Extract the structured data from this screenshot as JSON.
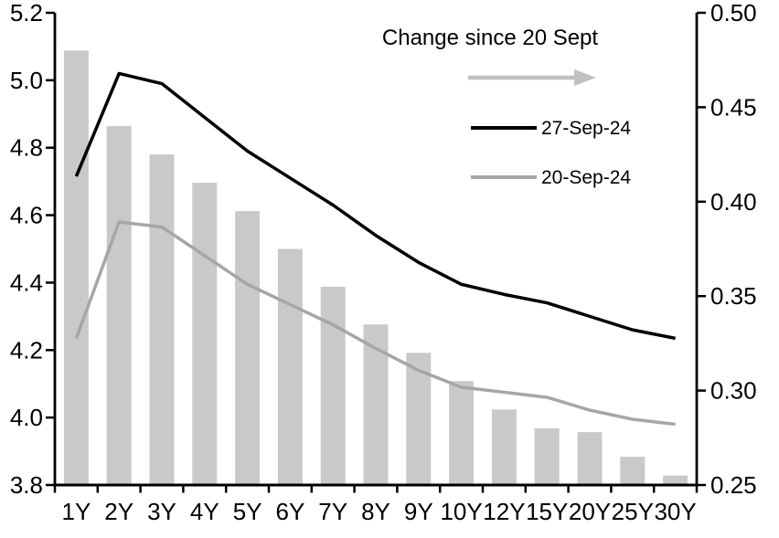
{
  "chart_data": {
    "type": "combo",
    "title": "",
    "categories": [
      "1Y",
      "2Y",
      "3Y",
      "4Y",
      "5Y",
      "6Y",
      "7Y",
      "8Y",
      "9Y",
      "10Y",
      "12Y",
      "15Y",
      "20Y",
      "25Y",
      "30Y"
    ],
    "series": [
      {
        "name": "Change since 20 Sept",
        "type": "bar",
        "axis": "right",
        "color": "#c9c9c9",
        "values": [
          0.48,
          0.44,
          0.425,
          0.41,
          0.395,
          0.375,
          0.355,
          0.335,
          0.32,
          0.305,
          0.29,
          0.28,
          0.278,
          0.265,
          0.255
        ]
      },
      {
        "name": "27-Sep-24",
        "type": "line",
        "axis": "left",
        "color": "#000000",
        "values": [
          4.715,
          5.02,
          4.99,
          4.89,
          4.79,
          4.71,
          4.63,
          4.54,
          4.46,
          4.395,
          4.365,
          4.34,
          4.3,
          4.26,
          4.235
        ]
      },
      {
        "name": "20-Sep-24",
        "type": "line",
        "axis": "left",
        "color": "#a6a6a6",
        "values": [
          4.235,
          4.58,
          4.565,
          4.48,
          4.395,
          4.335,
          4.275,
          4.205,
          4.14,
          4.09,
          4.075,
          4.06,
          4.022,
          3.995,
          3.98
        ]
      }
    ],
    "left_axis": {
      "min": 3.8,
      "max": 5.2,
      "step": 0.2,
      "ticks": [
        "5.2",
        "5.0",
        "4.8",
        "4.6",
        "4.4",
        "4.2",
        "4.0",
        "3.8"
      ]
    },
    "right_axis": {
      "min": 0.25,
      "max": 0.5,
      "step": 0.05,
      "ticks": [
        "0.50",
        "0.45",
        "0.40",
        "0.35",
        "0.30",
        "0.25"
      ]
    },
    "xlabel": "",
    "ylabel_left": "",
    "ylabel_right": "",
    "grid": false,
    "legend_position": "top-center-inside",
    "legend": {
      "arrow_color": "#c0c0c0",
      "axis_color": "#000000"
    }
  }
}
